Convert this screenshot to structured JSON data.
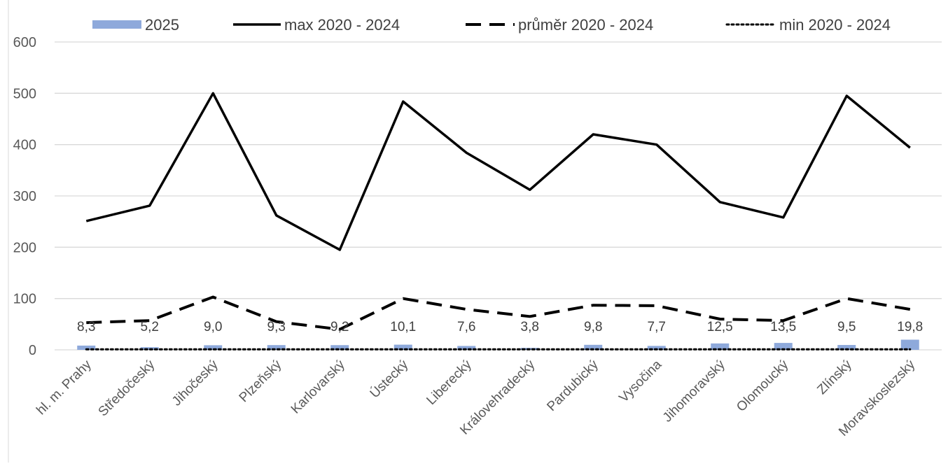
{
  "chart_data": {
    "type": "bar",
    "title": "",
    "xlabel": "",
    "ylabel": "",
    "ylim": [
      0,
      600
    ],
    "yticks": [
      0,
      100,
      200,
      300,
      400,
      500,
      600
    ],
    "grid": true,
    "legend_position": "top",
    "categories": [
      "hl. m. Prahy",
      "Středočeský",
      "Jihočeský",
      "Plzeňský",
      "Karlovarský",
      "Ústecký",
      "Liberecký",
      "Královehradecký",
      "Pardubický",
      "Vysočina",
      "Jihomoravský",
      "Olomoucký",
      "Zlínský",
      "Moravskoslezský"
    ],
    "series": [
      {
        "name": "2025",
        "kind": "bar",
        "color": "#8EA9DB",
        "values": [
          8.3,
          5.2,
          9.0,
          9.3,
          9.2,
          10.1,
          7.6,
          3.8,
          9.8,
          7.7,
          12.5,
          13.5,
          9.5,
          19.8
        ],
        "labels": [
          "8,3",
          "5,2",
          "9,0",
          "9,3",
          "9,2",
          "10,1",
          "7,6",
          "3,8",
          "9,8",
          "7,7",
          "12,5",
          "13,5",
          "9,5",
          "19,8"
        ]
      },
      {
        "name": "max 2020 - 2024",
        "kind": "line",
        "style": "solid",
        "color": "#000000",
        "values": [
          251,
          281,
          500,
          262,
          195,
          484,
          384,
          312,
          420,
          400,
          288,
          258,
          495,
          394
        ]
      },
      {
        "name": "průměr 2020 - 2024",
        "kind": "line",
        "style": "dashed",
        "color": "#000000",
        "values": [
          53,
          57,
          103,
          55,
          40,
          100,
          79,
          65,
          87,
          86,
          60,
          57,
          100,
          79
        ]
      },
      {
        "name": "min 2020 - 2024",
        "kind": "line",
        "style": "dotted",
        "color": "#000000",
        "values": [
          1,
          1,
          1,
          1,
          1,
          1,
          1,
          1,
          1,
          1,
          1,
          1,
          1,
          1
        ]
      }
    ]
  }
}
